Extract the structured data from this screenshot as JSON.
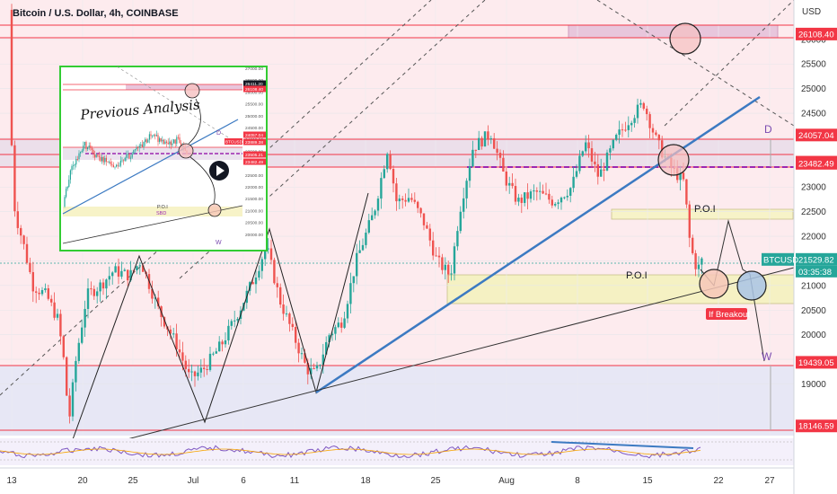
{
  "header": {
    "title": "Bitcoin / U.S. Dollar, 4h, COINBASE",
    "currency": "USD"
  },
  "chart_data": {
    "type": "candlestick",
    "ylim": [
      17950,
      26800
    ],
    "y_ticks": [
      19000,
      19500,
      20000,
      20500,
      21000,
      21500,
      22000,
      22500,
      23000,
      23500,
      24000,
      24500,
      25000,
      25500,
      26000
    ],
    "x_ticks": [
      "13",
      "20",
      "25",
      "Jul",
      "6",
      "11",
      "18",
      "25",
      "Aug",
      "8",
      "15",
      "22",
      "27"
    ],
    "price_tags": [
      {
        "value": 26108.4,
        "label": "26108.40",
        "color": "#f23645"
      },
      {
        "value": 24057.04,
        "label": "24057.04",
        "color": "#f23645"
      },
      {
        "value": 23505.21,
        "label": "23505.21",
        "color": "#f23645"
      },
      {
        "value": 23482.49,
        "label": "23482.49",
        "color": "#f23645"
      },
      {
        "value": 21529.82,
        "label": "21529.82",
        "color": "#26a69a"
      },
      {
        "value": 19439.05,
        "label": "19439.05",
        "color": "#f23645"
      },
      {
        "value": 18146.59,
        "label": "18146.59",
        "color": "#f23645"
      }
    ],
    "symbol_tag": "BTCUSD",
    "countdown": "03:35:38",
    "annotations": {
      "poi_upper": "P.O.I",
      "poi_lower": "P.O.I",
      "if_breakout": "If Breakout",
      "d_label": "D",
      "w_label": "W",
      "inset_title": "Previous Analysis"
    },
    "inset": {
      "y_ticks": [
        "27000.00",
        "26500.00",
        "26000.00",
        "25500.00",
        "25000.00",
        "24500.00",
        "24000.00",
        "23500.00",
        "23000.00",
        "22500.00",
        "22000.00",
        "21500.00",
        "21000.00",
        "20500.00",
        "20000.00"
      ],
      "tags": [
        "26411.20",
        "26108.40",
        "24057.04",
        "23889.38",
        "23505.21",
        "23482.49"
      ],
      "symbol": "BTCUSD",
      "poi": "P.O.I",
      "sbd": "SBD",
      "d": "D",
      "w": "W"
    },
    "colors": {
      "up": "#26a69a",
      "down": "#ef5350"
    }
  }
}
